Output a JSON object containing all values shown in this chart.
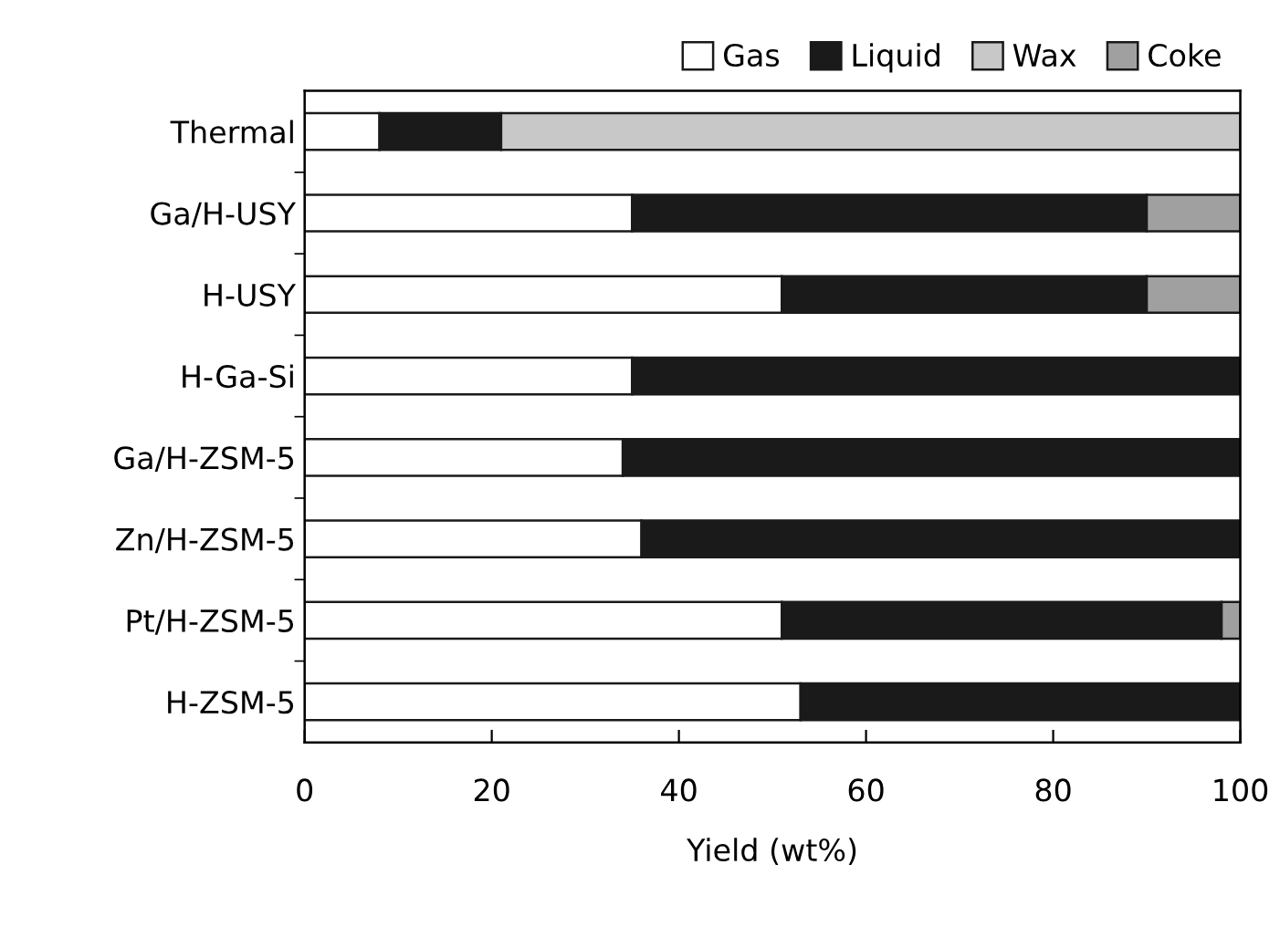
{
  "chart_data": {
    "type": "bar",
    "orientation": "horizontal",
    "stacked": true,
    "xlabel": "Yield (wt%)",
    "categories": [
      "Thermal",
      "Ga/H-USY",
      "H-USY",
      "H-Ga-Si",
      "Ga/H-ZSM-5",
      "Zn/H-ZSM-5",
      "Pt/H-ZSM-5",
      "H-ZSM-5"
    ],
    "series": [
      {
        "name": "Gas",
        "color": "#ffffff",
        "values": [
          8,
          35,
          51,
          35,
          34,
          36,
          51,
          53
        ]
      },
      {
        "name": "Liquid",
        "color": "#1a1a1a",
        "values": [
          13,
          55,
          39,
          65,
          66,
          64,
          47,
          47
        ]
      },
      {
        "name": "Wax",
        "color": "#c8c8c8",
        "values": [
          79,
          0,
          0,
          0,
          0,
          0,
          0,
          0
        ]
      },
      {
        "name": "Coke",
        "color": "#a0a0a0",
        "values": [
          0,
          10,
          10,
          0,
          0,
          0,
          2,
          0
        ]
      }
    ],
    "xlim": [
      0,
      100
    ],
    "xticks": [
      0,
      20,
      40,
      60,
      80,
      100
    ],
    "grid": false,
    "legend": "top"
  }
}
